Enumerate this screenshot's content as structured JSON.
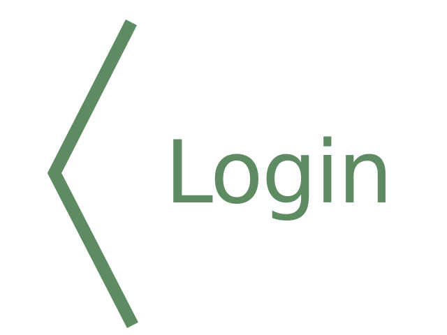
{
  "header": {
    "back_icon": "chevron-left-icon",
    "title": "Login"
  },
  "colors": {
    "accent": "#5e8b62",
    "background": "#ffffff"
  }
}
